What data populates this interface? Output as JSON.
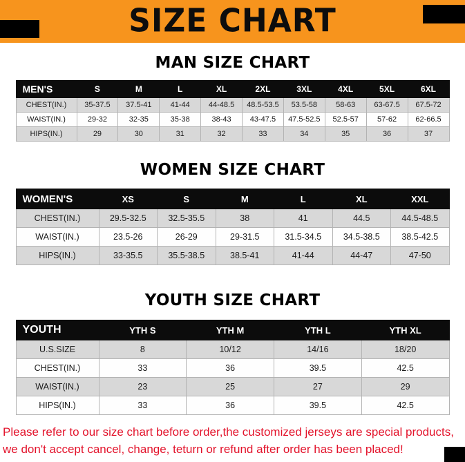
{
  "banner": {
    "title": "SIZE CHART",
    "bg_color": "#F7941D"
  },
  "sections": [
    {
      "heading": "MAN SIZE CHART",
      "table": {
        "header": [
          "MEN'S",
          "S",
          "M",
          "L",
          "XL",
          "2XL",
          "3XL",
          "4XL",
          "5XL",
          "6XL"
        ],
        "rows": [
          [
            "CHEST(IN.)",
            "35-37.5",
            "37.5-41",
            "41-44",
            "44-48.5",
            "48.5-53.5",
            "53.5-58",
            "58-63",
            "63-67.5",
            "67.5-72"
          ],
          [
            "WAIST(IN.)",
            "29-32",
            "32-35",
            "35-38",
            "38-43",
            "43-47.5",
            "47.5-52.5",
            "52.5-57",
            "57-62",
            "62-66.5"
          ],
          [
            "HIPS(IN.)",
            "29",
            "30",
            "31",
            "32",
            "33",
            "34",
            "35",
            "36",
            "37"
          ]
        ]
      }
    },
    {
      "heading": "WOMEN SIZE CHART",
      "table": {
        "header": [
          "WOMEN'S",
          "XS",
          "S",
          "M",
          "L",
          "XL",
          "XXL"
        ],
        "rows": [
          [
            "CHEST(IN.)",
            "29.5-32.5",
            "32.5-35.5",
            "38",
            "41",
            "44.5",
            "44.5-48.5"
          ],
          [
            "WAIST(IN.)",
            "23.5-26",
            "26-29",
            "29-31.5",
            "31.5-34.5",
            "34.5-38.5",
            "38.5-42.5"
          ],
          [
            "HIPS(IN.)",
            "33-35.5",
            "35.5-38.5",
            "38.5-41",
            "41-44",
            "44-47",
            "47-50"
          ]
        ]
      }
    },
    {
      "heading": "YOUTH SIZE CHART",
      "table": {
        "header": [
          "YOUTH",
          "YTH S",
          "YTH M",
          "YTH L",
          "YTH XL"
        ],
        "rows": [
          [
            "U.S.SIZE",
            "8",
            "10/12",
            "14/16",
            "18/20"
          ],
          [
            "CHEST(IN.)",
            "33",
            "36",
            "39.5",
            "42.5"
          ],
          [
            "WAIST(IN.)",
            "23",
            "25",
            "27",
            "29"
          ],
          [
            "HIPS(IN.)",
            "33",
            "36",
            "39.5",
            "42.5"
          ]
        ]
      }
    }
  ],
  "footer": {
    "line1": "Please refer to our size chart before order,the customized jerseys are special products,",
    "line2": "we don't accept cancel, change, teturn or refund after order has been placed!",
    "text_color": "#E3132B"
  }
}
